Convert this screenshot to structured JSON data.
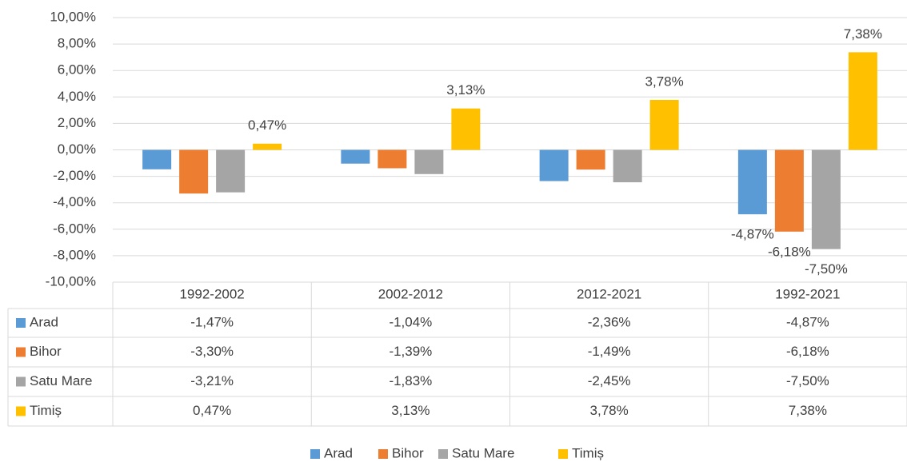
{
  "chart_data": {
    "type": "bar",
    "categories": [
      "1992-2002",
      "2002-2012",
      "2012-2021",
      "1992-2021"
    ],
    "series": [
      {
        "name": "Arad",
        "color": "#5b9bd5",
        "values": [
          -1.47,
          -1.04,
          -2.36,
          -4.87
        ],
        "value_labels": [
          "-1,47%",
          "-1,04%",
          "-2,36%",
          "-4,87%"
        ],
        "data_labels": [
          false,
          false,
          false,
          true
        ]
      },
      {
        "name": "Bihor",
        "color": "#ed7d31",
        "values": [
          -3.3,
          -1.39,
          -1.49,
          -6.18
        ],
        "value_labels": [
          "-3,30%",
          "-1,39%",
          "-1,49%",
          "-6,18%"
        ],
        "data_labels": [
          false,
          false,
          false,
          true
        ]
      },
      {
        "name": "Satu Mare",
        "color": "#a5a5a5",
        "values": [
          -3.21,
          -1.83,
          -2.45,
          -7.5
        ],
        "value_labels": [
          "-3,21%",
          "-1,83%",
          "-2,45%",
          "-7,50%"
        ],
        "data_labels": [
          false,
          false,
          false,
          true
        ]
      },
      {
        "name": "Timiș",
        "color": "#ffc000",
        "values": [
          0.47,
          3.13,
          3.78,
          7.38
        ],
        "value_labels": [
          "0,47%",
          "3,13%",
          "3,78%",
          "7,38%"
        ],
        "data_labels": [
          true,
          true,
          true,
          true
        ]
      }
    ],
    "ylim": [
      -10,
      10
    ],
    "yticks": [
      {
        "value": -10,
        "label": "-10,00%"
      },
      {
        "value": -8,
        "label": "-8,00%"
      },
      {
        "value": -6,
        "label": "-6,00%"
      },
      {
        "value": -4,
        "label": "-4,00%"
      },
      {
        "value": -2,
        "label": "-2,00%"
      },
      {
        "value": 0,
        "label": "0,00%"
      },
      {
        "value": 2,
        "label": "2,00%"
      },
      {
        "value": 4,
        "label": "4,00%"
      },
      {
        "value": 6,
        "label": "6,00%"
      },
      {
        "value": 8,
        "label": "8,00%"
      },
      {
        "value": 10,
        "label": "10,00%"
      }
    ],
    "grid": true,
    "data_table": true,
    "legend": "bottom"
  }
}
